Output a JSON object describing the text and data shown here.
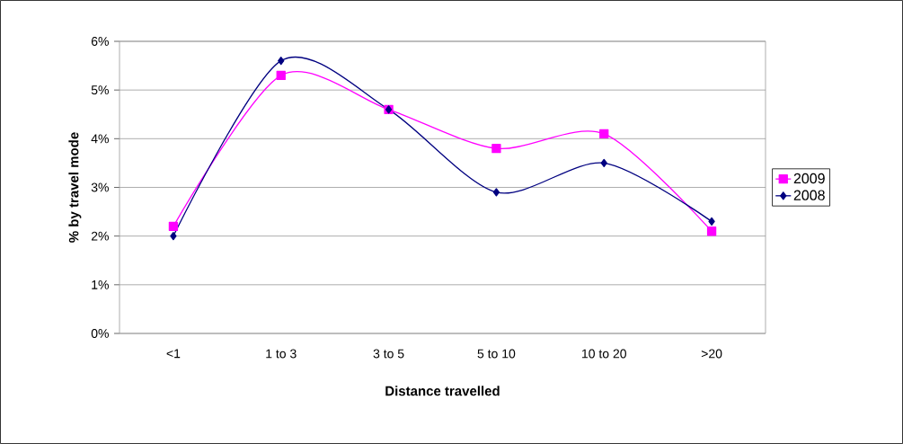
{
  "chart_data": {
    "type": "line",
    "xlabel": "Distance travelled",
    "ylabel": "% by travel mode",
    "categories": [
      "<1",
      "1 to 3",
      "3 to 5",
      "5 to 10",
      "10 to 20",
      ">20"
    ],
    "series": [
      {
        "name": "2009",
        "color": "#ff00ff",
        "marker": "square",
        "values": [
          2.2,
          5.3,
          4.6,
          3.8,
          4.1,
          2.1
        ]
      },
      {
        "name": "2008",
        "color": "#000080",
        "marker": "diamond",
        "values": [
          2.0,
          5.6,
          4.6,
          2.9,
          3.5,
          2.3
        ]
      }
    ],
    "ylim": [
      0,
      6
    ],
    "yticks": [
      {
        "value": 0,
        "label": "0%"
      },
      {
        "value": 1,
        "label": "1%"
      },
      {
        "value": 2,
        "label": "2%"
      },
      {
        "value": 3,
        "label": "3%"
      },
      {
        "value": 4,
        "label": "4%"
      },
      {
        "value": 5,
        "label": "5%"
      },
      {
        "value": 6,
        "label": "6%"
      }
    ],
    "grid": "y",
    "legend": "right"
  }
}
